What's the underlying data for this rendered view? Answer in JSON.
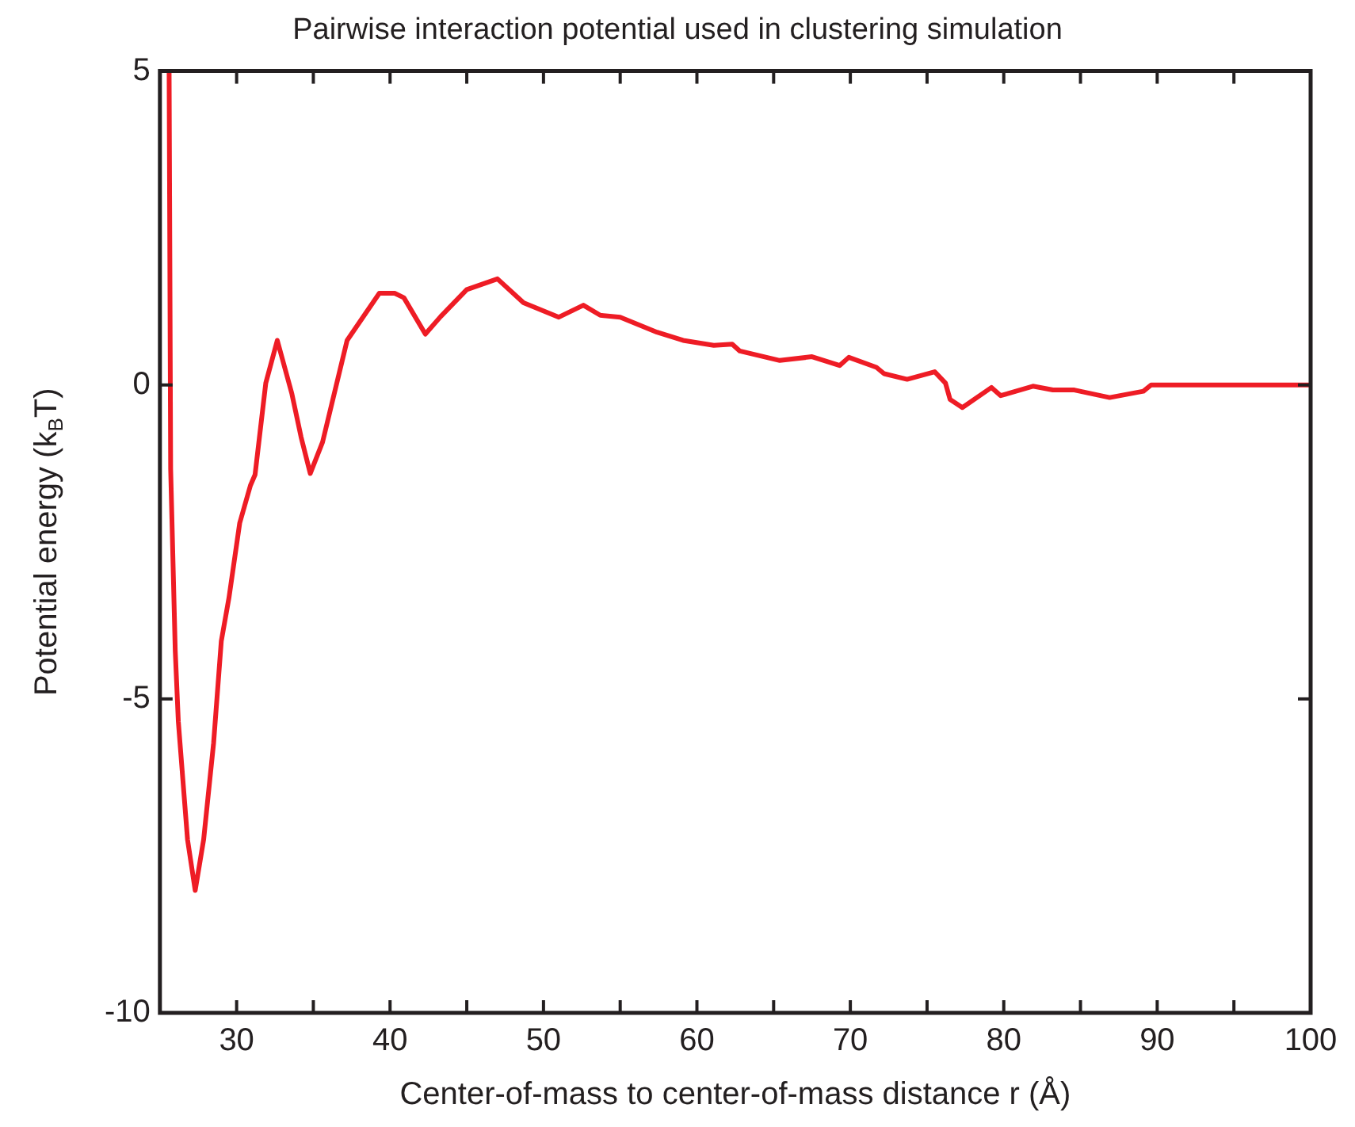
{
  "chart_data": {
    "type": "line",
    "title": "Pairwise interaction potential used in clustering simulation",
    "xlabel": "Center-of-mass to center-of-mass distance r (Å)",
    "ylabel": "Potential energy (k$_{B}$T)",
    "xlim": [
      25,
      100
    ],
    "ylim": [
      -10,
      5
    ],
    "xticks": [
      30,
      {
        "value": 35,
        "label": null
      },
      40,
      {
        "value": 45,
        "label": null
      },
      50,
      {
        "value": 55,
        "label": null
      },
      60,
      {
        "value": 65,
        "label": null
      },
      70,
      {
        "value": 75,
        "label": null
      },
      80,
      {
        "value": 85,
        "label": null
      },
      90,
      {
        "value": 95,
        "label": null
      },
      100
    ],
    "yticks": [
      -10,
      -5,
      0,
      5
    ],
    "grid": false,
    "legend": false,
    "marker": "none",
    "line_style": "solid",
    "series": [
      {
        "color": "#ee1c25",
        "x": [
          25.6,
          25.7,
          26.0,
          26.2,
          26.8,
          27.3,
          27.85,
          28.5,
          29.0,
          29.5,
          30.2,
          30.9,
          31.2,
          31.9,
          32.65,
          33.6,
          34.2,
          34.8,
          35.6,
          37.2,
          39.3,
          40.3,
          40.9,
          42.3,
          43.3,
          45.0,
          47.0,
          48.7,
          51.0,
          52.6,
          53.7,
          55.0,
          57.4,
          59.1,
          61.1,
          62.3,
          62.8,
          65.4,
          67.5,
          69.3,
          69.9,
          71.7,
          72.2,
          73.7,
          75.5,
          76.2,
          76.5,
          77.3,
          79.2,
          79.8,
          81.9,
          83.2,
          84.6,
          86.9,
          89.1,
          89.6,
          100
        ],
        "values": [
          5,
          -1.34,
          -4.24,
          -5.36,
          -7.24,
          -8.05,
          -7.24,
          -5.7,
          -4.08,
          -3.39,
          -2.2,
          -1.6,
          -1.43,
          0.03,
          0.71,
          -0.14,
          -0.83,
          -1.41,
          -0.91,
          0.71,
          1.46,
          1.46,
          1.39,
          0.81,
          1.09,
          1.52,
          1.69,
          1.31,
          1.08,
          1.27,
          1.11,
          1.08,
          0.84,
          0.71,
          0.63,
          0.65,
          0.54,
          0.39,
          0.45,
          0.31,
          0.44,
          0.28,
          0.18,
          0.09,
          0.21,
          0.03,
          -0.23,
          -0.36,
          -0.04,
          -0.17,
          -0.02,
          -0.08,
          -0.08,
          -0.2,
          -0.1,
          0,
          0
        ]
      }
    ]
  }
}
